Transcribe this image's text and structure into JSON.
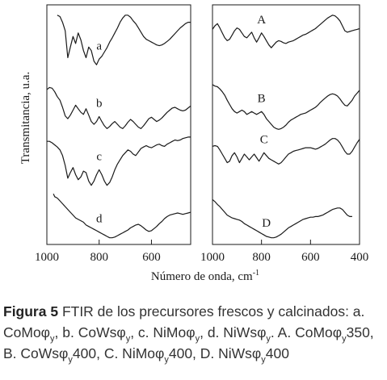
{
  "chart_data": [
    {
      "type": "line",
      "panel": "left",
      "xlabel": "Número de onda, cm",
      "xlabel_sup": "-1",
      "ylabel": "Transmitancia, u.a.",
      "xlim": [
        1000,
        450
      ],
      "xticks": [
        1000,
        800,
        600
      ],
      "yticks": "none",
      "grid": false,
      "series": [
        {
          "name": "a",
          "x": [
            960,
            950,
            940,
            930,
            920,
            910,
            900,
            890,
            880,
            870,
            860,
            850,
            840,
            830,
            820,
            810,
            800,
            790,
            780,
            770,
            760,
            750,
            740,
            730,
            720,
            710,
            700,
            690,
            680,
            670,
            660,
            650,
            640,
            630,
            620,
            610,
            600,
            590,
            580,
            570,
            560,
            550,
            540,
            530,
            520,
            510,
            500,
            490,
            480,
            470,
            460,
            450
          ],
          "y": [
            3.2,
            3.18,
            3.1,
            2.98,
            2.6,
            2.75,
            2.9,
            2.8,
            2.95,
            2.85,
            2.7,
            2.6,
            2.75,
            2.7,
            2.55,
            2.5,
            2.58,
            2.62,
            2.68,
            2.74,
            2.82,
            2.88,
            2.95,
            3.02,
            3.1,
            3.16,
            3.2,
            3.2,
            3.17,
            3.12,
            3.08,
            3.02,
            2.96,
            2.9,
            2.86,
            2.84,
            2.82,
            2.8,
            2.78,
            2.77,
            2.78,
            2.8,
            2.83,
            2.86,
            2.9,
            2.94,
            2.98,
            3.02,
            3.05,
            3.08,
            3.1,
            3.1
          ]
        },
        {
          "name": "b",
          "x": [
            1000,
            990,
            980,
            970,
            960,
            950,
            940,
            930,
            920,
            910,
            900,
            890,
            880,
            870,
            860,
            850,
            840,
            830,
            820,
            810,
            800,
            790,
            780,
            770,
            760,
            750,
            740,
            730,
            720,
            710,
            700,
            690,
            680,
            670,
            660,
            650,
            640,
            630,
            620,
            610,
            600,
            590,
            580,
            570,
            560,
            550,
            540,
            530,
            520,
            510,
            500,
            490,
            480,
            470,
            460,
            450
          ],
          "y": [
            2.15,
            2.18,
            2.17,
            2.12,
            2.05,
            2.0,
            1.9,
            1.78,
            1.74,
            1.79,
            1.86,
            1.93,
            1.88,
            1.83,
            1.8,
            1.88,
            1.79,
            1.7,
            1.66,
            1.7,
            1.77,
            1.7,
            1.64,
            1.6,
            1.63,
            1.67,
            1.7,
            1.66,
            1.62,
            1.6,
            1.64,
            1.69,
            1.73,
            1.7,
            1.66,
            1.62,
            1.6,
            1.64,
            1.69,
            1.74,
            1.76,
            1.73,
            1.7,
            1.72,
            1.75,
            1.79,
            1.83,
            1.86,
            1.89,
            1.9,
            1.88,
            1.86,
            1.85,
            1.86,
            1.89,
            1.92
          ]
        },
        {
          "name": "c",
          "x": [
            1000,
            990,
            980,
            970,
            960,
            950,
            940,
            930,
            920,
            910,
            900,
            890,
            880,
            870,
            860,
            850,
            840,
            830,
            820,
            810,
            800,
            790,
            780,
            770,
            760,
            750,
            740,
            730,
            720,
            710,
            700,
            690,
            680,
            670,
            660,
            650,
            640,
            630,
            620,
            610,
            600,
            590,
            580,
            570,
            560,
            550,
            540,
            530,
            520,
            510,
            500,
            490,
            480,
            470,
            460,
            450
          ],
          "y": [
            1.42,
            1.42,
            1.4,
            1.37,
            1.34,
            1.3,
            1.22,
            1.08,
            0.9,
            0.98,
            1.05,
            0.95,
            0.88,
            0.92,
            1.0,
            0.98,
            0.86,
            0.8,
            0.86,
            0.95,
            1.02,
            0.95,
            0.86,
            0.8,
            0.84,
            0.92,
            1.02,
            1.1,
            1.16,
            1.22,
            1.26,
            1.3,
            1.28,
            1.24,
            1.22,
            1.27,
            1.32,
            1.34,
            1.36,
            1.34,
            1.33,
            1.35,
            1.37,
            1.38,
            1.36,
            1.35,
            1.38,
            1.4,
            1.42,
            1.44,
            1.43,
            1.44,
            1.46,
            1.47,
            1.48,
            1.48
          ]
        },
        {
          "name": "d",
          "x": [
            975,
            970,
            960,
            950,
            940,
            930,
            920,
            910,
            900,
            890,
            880,
            870,
            860,
            850,
            840,
            830,
            820,
            810,
            800,
            790,
            780,
            770,
            760,
            750,
            740,
            730,
            720,
            710,
            700,
            690,
            680,
            670,
            660,
            650,
            640,
            630,
            620,
            610,
            600,
            590,
            580,
            570,
            560,
            550,
            540,
            530,
            520,
            510,
            500,
            490,
            480,
            470,
            460,
            450
          ],
          "y": [
            0.68,
            0.64,
            0.62,
            0.58,
            0.54,
            0.5,
            0.46,
            0.42,
            0.38,
            0.34,
            0.32,
            0.3,
            0.28,
            0.24,
            0.22,
            0.2,
            0.18,
            0.16,
            0.14,
            0.12,
            0.1,
            0.08,
            0.06,
            0.06,
            0.07,
            0.09,
            0.11,
            0.13,
            0.15,
            0.17,
            0.2,
            0.22,
            0.24,
            0.25,
            0.23,
            0.2,
            0.17,
            0.15,
            0.16,
            0.19,
            0.22,
            0.26,
            0.29,
            0.33,
            0.36,
            0.38,
            0.39,
            0.4,
            0.41,
            0.4,
            0.39,
            0.4,
            0.41,
            0.42
          ]
        }
      ]
    },
    {
      "type": "line",
      "panel": "right",
      "xlabel": "",
      "xlim": [
        1000,
        400
      ],
      "xticks": [
        1000,
        800,
        600,
        400
      ],
      "yticks": "none",
      "grid": false,
      "series": [
        {
          "name": "A",
          "x": [
            1000,
            990,
            980,
            970,
            960,
            950,
            940,
            930,
            920,
            910,
            900,
            890,
            880,
            870,
            860,
            850,
            840,
            830,
            820,
            810,
            800,
            790,
            780,
            770,
            760,
            750,
            740,
            730,
            720,
            710,
            700,
            690,
            680,
            670,
            660,
            650,
            640,
            630,
            620,
            610,
            600,
            590,
            580,
            570,
            560,
            550,
            540,
            530,
            520,
            510,
            500,
            490,
            480,
            470,
            460,
            450,
            440,
            430,
            420,
            410,
            400
          ],
          "y": [
            3.0,
            3.05,
            3.08,
            3.02,
            2.95,
            2.88,
            2.84,
            2.86,
            2.92,
            2.98,
            3.02,
            3.0,
            2.95,
            2.9,
            2.88,
            2.92,
            2.96,
            2.88,
            2.82,
            2.88,
            2.95,
            2.9,
            2.84,
            2.78,
            2.74,
            2.78,
            2.82,
            2.84,
            2.83,
            2.81,
            2.8,
            2.82,
            2.83,
            2.84,
            2.86,
            2.88,
            2.9,
            2.92,
            2.93,
            2.95,
            2.97,
            2.99,
            3.01,
            3.04,
            3.07,
            3.1,
            3.13,
            3.16,
            3.18,
            3.2,
            3.19,
            3.16,
            3.12,
            3.05,
            2.98,
            2.96,
            2.97,
            2.98,
            2.99,
            3.0,
            3.01
          ]
        },
        {
          "name": "B",
          "x": [
            1000,
            990,
            980,
            970,
            960,
            950,
            940,
            930,
            920,
            910,
            900,
            890,
            880,
            870,
            860,
            850,
            840,
            830,
            820,
            810,
            800,
            790,
            780,
            770,
            760,
            750,
            740,
            730,
            720,
            710,
            700,
            690,
            680,
            670,
            660,
            650,
            640,
            630,
            620,
            610,
            600,
            590,
            580,
            570,
            560,
            550,
            540,
            530,
            520,
            510,
            500,
            490,
            480,
            470,
            460,
            450,
            440,
            430,
            420,
            410,
            400
          ],
          "y": [
            2.22,
            2.2,
            2.19,
            2.16,
            2.12,
            2.07,
            2.0,
            1.94,
            1.88,
            1.84,
            1.82,
            1.84,
            1.86,
            1.84,
            1.8,
            1.82,
            1.84,
            1.82,
            1.8,
            1.82,
            1.84,
            1.8,
            1.74,
            1.7,
            1.66,
            1.62,
            1.6,
            1.59,
            1.6,
            1.62,
            1.65,
            1.69,
            1.72,
            1.74,
            1.76,
            1.78,
            1.8,
            1.81,
            1.82,
            1.84,
            1.86,
            1.88,
            1.9,
            1.93,
            1.97,
            2.0,
            2.03,
            2.06,
            2.08,
            2.09,
            2.08,
            2.06,
            2.02,
            1.97,
            1.93,
            1.92,
            1.96,
            2.0,
            2.06,
            2.1,
            2.14
          ]
        },
        {
          "name": "C",
          "x": [
            1000,
            990,
            980,
            970,
            960,
            950,
            940,
            930,
            920,
            910,
            900,
            890,
            880,
            870,
            860,
            850,
            840,
            830,
            820,
            810,
            800,
            790,
            780,
            770,
            760,
            750,
            740,
            730,
            720,
            710,
            700,
            690,
            680,
            670,
            660,
            650,
            640,
            630,
            620,
            610,
            600,
            590,
            580,
            570,
            560,
            550,
            540,
            530,
            520,
            510,
            500,
            490,
            480,
            470,
            460,
            450,
            440,
            430,
            420,
            410,
            400
          ],
          "y": [
            1.35,
            1.36,
            1.35,
            1.3,
            1.24,
            1.18,
            1.12,
            1.14,
            1.22,
            1.26,
            1.2,
            1.12,
            1.18,
            1.24,
            1.2,
            1.16,
            1.2,
            1.24,
            1.19,
            1.14,
            1.2,
            1.26,
            1.22,
            1.18,
            1.16,
            1.14,
            1.12,
            1.1,
            1.12,
            1.16,
            1.2,
            1.24,
            1.26,
            1.28,
            1.29,
            1.3,
            1.31,
            1.32,
            1.33,
            1.33,
            1.33,
            1.32,
            1.31,
            1.32,
            1.34,
            1.36,
            1.38,
            1.41,
            1.44,
            1.46,
            1.46,
            1.44,
            1.4,
            1.34,
            1.28,
            1.24,
            1.24,
            1.28,
            1.34,
            1.4,
            1.45
          ]
        },
        {
          "name": "D",
          "x": [
            1000,
            990,
            980,
            970,
            960,
            950,
            940,
            930,
            920,
            910,
            900,
            890,
            880,
            870,
            860,
            850,
            840,
            830,
            820,
            810,
            800,
            790,
            780,
            770,
            760,
            750,
            740,
            730,
            720,
            710,
            700,
            690,
            680,
            670,
            660,
            650,
            640,
            630,
            620,
            610,
            600,
            590,
            580,
            570,
            560,
            550,
            540,
            530,
            520,
            510,
            500,
            490,
            480,
            470,
            460,
            450,
            440,
            430
          ],
          "y": [
            0.6,
            0.57,
            0.53,
            0.5,
            0.46,
            0.42,
            0.38,
            0.36,
            0.34,
            0.33,
            0.32,
            0.31,
            0.29,
            0.26,
            0.24,
            0.22,
            0.2,
            0.18,
            0.16,
            0.14,
            0.12,
            0.1,
            0.08,
            0.07,
            0.06,
            0.06,
            0.07,
            0.09,
            0.11,
            0.14,
            0.17,
            0.2,
            0.22,
            0.24,
            0.26,
            0.28,
            0.3,
            0.32,
            0.33,
            0.34,
            0.35,
            0.35,
            0.36,
            0.36,
            0.37,
            0.38,
            0.4,
            0.42,
            0.44,
            0.46,
            0.47,
            0.48,
            0.48,
            0.46,
            0.42,
            0.38,
            0.36,
            0.36
          ]
        }
      ]
    }
  ],
  "caption": {
    "fig_label": "Figura 5",
    "text_html": " FTIR de los precursores frescos y calcinados: a. CoMoφ<sub>y</sub>, b. CoWsφ<sub>y</sub>, c. NiMoφ<sub>y</sub>, d. NiWsφ<sub>y</sub>. A. CoMoφ<sub>y</sub>350, B. CoWsφ<sub>y</sub>400, C. NiMoφ<sub>y</sub>400, D. NiWsφ<sub>y</sub>400"
  }
}
